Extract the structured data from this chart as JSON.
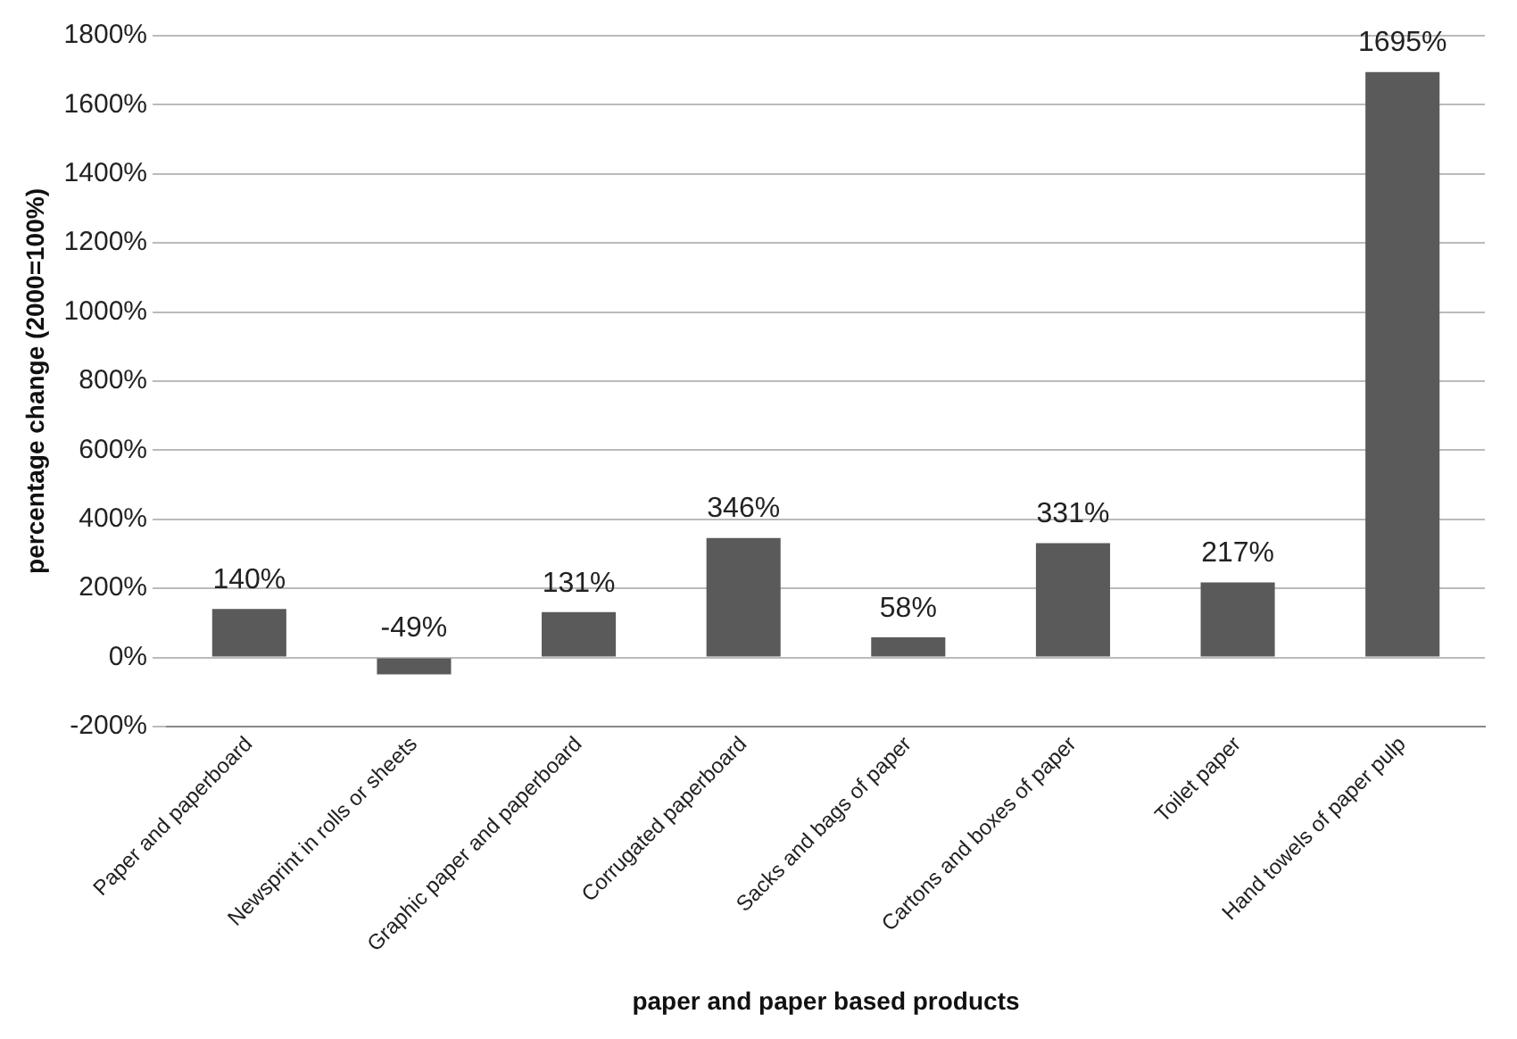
{
  "chart_data": {
    "type": "bar",
    "xlabel": "paper and paper based products",
    "ylabel": "percentage change (2000=100%)",
    "categories": [
      "Paper and paperboard",
      "Newsprint in rolls or sheets",
      "Graphic paper and paperboard",
      "Corrugated paperboard",
      "Sacks and bags of paper",
      "Cartons and boxes of paper",
      "Toilet paper",
      "Hand towels of paper pulp"
    ],
    "values": [
      140,
      -49,
      131,
      346,
      58,
      331,
      217,
      1695
    ],
    "value_labels": [
      "140%",
      "-49%",
      "131%",
      "346%",
      "58%",
      "331%",
      "217%",
      "1695%"
    ],
    "color": "#5a5a5a",
    "ylim": [
      -200,
      1800
    ],
    "yticks": [
      {
        "value": -200,
        "label": "-200%"
      },
      {
        "value": 0,
        "label": "0%"
      },
      {
        "value": 200,
        "label": "200%"
      },
      {
        "value": 400,
        "label": "400%"
      },
      {
        "value": 600,
        "label": "600%"
      },
      {
        "value": 800,
        "label": "800%"
      },
      {
        "value": 1000,
        "label": "1000%"
      },
      {
        "value": 1200,
        "label": "1200%"
      },
      {
        "value": 1400,
        "label": "1400%"
      },
      {
        "value": 1600,
        "label": "1600%"
      },
      {
        "value": 1800,
        "label": "1800%"
      }
    ],
    "grid": "y",
    "legend": false
  }
}
